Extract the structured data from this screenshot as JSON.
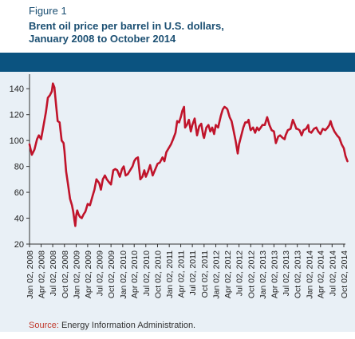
{
  "figure": {
    "label": "Figure 1",
    "title_line1": "Brent oil price per barrel in U.S. dollars,",
    "title_line2": "January 2008 to October 2014"
  },
  "source": {
    "label": "Source:",
    "text": " Energy Information Administration."
  },
  "colors": {
    "header_band": "#0b5380",
    "plot_background": "#e9f0f6",
    "line": "#c0142b",
    "title": "#1b4f72",
    "source_label": "#c0392b"
  },
  "chart_data": {
    "type": "line",
    "title": "Brent oil price per barrel in U.S. dollars, January 2008 to October 2014",
    "xlabel": "",
    "ylabel": "",
    "ylim": [
      20,
      150
    ],
    "yticks": [
      20,
      40,
      60,
      80,
      100,
      120,
      140
    ],
    "grid": false,
    "xticks": [
      {
        "date": "2008-01-02",
        "label": "Jan 02, 2008"
      },
      {
        "date": "2008-04-02",
        "label": "Apr 02, 2008"
      },
      {
        "date": "2008-07-02",
        "label": "Jul 02, 2008"
      },
      {
        "date": "2008-10-02",
        "label": "Oct 02, 2008"
      },
      {
        "date": "2009-01-02",
        "label": "Jan 02, 2009"
      },
      {
        "date": "2009-04-02",
        "label": "Apr 02, 2009"
      },
      {
        "date": "2009-07-02",
        "label": "Jul 02, 2009"
      },
      {
        "date": "2009-10-02",
        "label": "Oct 02, 2009"
      },
      {
        "date": "2010-01-02",
        "label": "Jan 02, 2010"
      },
      {
        "date": "2010-04-02",
        "label": "Apr 02, 2010"
      },
      {
        "date": "2010-07-02",
        "label": "Jul 02, 2010"
      },
      {
        "date": "2010-10-02",
        "label": "Oct 02, 2010"
      },
      {
        "date": "2011-01-02",
        "label": "Jan 02, 2011"
      },
      {
        "date": "2011-04-02",
        "label": "Apr 02, 2011"
      },
      {
        "date": "2011-07-02",
        "label": "Jul 02, 2011"
      },
      {
        "date": "2011-10-02",
        "label": "Oct 02, 2011"
      },
      {
        "date": "2012-01-02",
        "label": "Jan 02, 2012"
      },
      {
        "date": "2012-04-02",
        "label": "Apr 02, 2012"
      },
      {
        "date": "2012-07-02",
        "label": "Jul 02, 2012"
      },
      {
        "date": "2012-10-02",
        "label": "Oct 02, 2012"
      },
      {
        "date": "2013-01-02",
        "label": "Jan 02, 2013"
      },
      {
        "date": "2013-04-02",
        "label": "Apr 02, 2013"
      },
      {
        "date": "2013-07-02",
        "label": "Jul 02, 2013"
      },
      {
        "date": "2013-10-02",
        "label": "Oct 02, 2013"
      },
      {
        "date": "2014-01-02",
        "label": "Jan 02, 2014"
      },
      {
        "date": "2014-04-02",
        "label": "Apr 02, 2014"
      },
      {
        "date": "2014-07-02",
        "label": "Jul 02, 2014"
      },
      {
        "date": "2014-10-02",
        "label": "Oct 02, 2014"
      }
    ],
    "series": [
      {
        "points": [
          [
            "2008-01-02",
            97
          ],
          [
            "2008-01-20",
            89
          ],
          [
            "2008-02-10",
            93
          ],
          [
            "2008-03-01",
            101
          ],
          [
            "2008-03-15",
            104
          ],
          [
            "2008-04-02",
            101
          ],
          [
            "2008-04-20",
            111
          ],
          [
            "2008-05-10",
            122
          ],
          [
            "2008-05-25",
            133
          ],
          [
            "2008-06-10",
            135
          ],
          [
            "2008-06-25",
            138
          ],
          [
            "2008-07-03",
            144
          ],
          [
            "2008-07-15",
            141
          ],
          [
            "2008-07-28",
            128
          ],
          [
            "2008-08-10",
            115
          ],
          [
            "2008-08-25",
            114
          ],
          [
            "2008-09-10",
            100
          ],
          [
            "2008-09-25",
            98
          ],
          [
            "2008-10-02",
            92
          ],
          [
            "2008-10-15",
            76
          ],
          [
            "2008-10-30",
            66
          ],
          [
            "2008-11-15",
            55
          ],
          [
            "2008-11-30",
            50
          ],
          [
            "2008-12-10",
            45
          ],
          [
            "2008-12-20",
            38
          ],
          [
            "2008-12-26",
            34
          ],
          [
            "2009-01-02",
            42
          ],
          [
            "2009-01-10",
            46
          ],
          [
            "2009-01-20",
            43
          ],
          [
            "2009-02-01",
            41
          ],
          [
            "2009-02-15",
            40
          ],
          [
            "2009-03-01",
            43
          ],
          [
            "2009-03-15",
            45
          ],
          [
            "2009-04-02",
            51
          ],
          [
            "2009-04-20",
            50
          ],
          [
            "2009-05-10",
            57
          ],
          [
            "2009-05-25",
            62
          ],
          [
            "2009-06-10",
            70
          ],
          [
            "2009-06-25",
            68
          ],
          [
            "2009-07-02",
            67
          ],
          [
            "2009-07-15",
            62
          ],
          [
            "2009-07-30",
            70
          ],
          [
            "2009-08-15",
            73
          ],
          [
            "2009-08-30",
            70
          ],
          [
            "2009-09-15",
            68
          ],
          [
            "2009-10-02",
            66
          ],
          [
            "2009-10-20",
            77
          ],
          [
            "2009-11-05",
            78
          ],
          [
            "2009-11-20",
            77
          ],
          [
            "2009-12-10",
            72
          ],
          [
            "2009-12-28",
            78
          ],
          [
            "2010-01-10",
            80
          ],
          [
            "2010-01-25",
            73
          ],
          [
            "2010-02-10",
            74
          ],
          [
            "2010-03-01",
            77
          ],
          [
            "2010-03-20",
            80
          ],
          [
            "2010-04-02",
            84
          ],
          [
            "2010-04-15",
            86
          ],
          [
            "2010-05-01",
            87
          ],
          [
            "2010-05-20",
            70
          ],
          [
            "2010-06-05",
            72
          ],
          [
            "2010-06-20",
            77
          ],
          [
            "2010-07-02",
            72
          ],
          [
            "2010-07-20",
            76
          ],
          [
            "2010-08-05",
            81
          ],
          [
            "2010-08-25",
            73
          ],
          [
            "2010-09-15",
            78
          ],
          [
            "2010-10-02",
            82
          ],
          [
            "2010-10-20",
            83
          ],
          [
            "2010-11-10",
            87
          ],
          [
            "2010-11-25",
            84
          ],
          [
            "2010-12-10",
            91
          ],
          [
            "2010-12-28",
            94
          ],
          [
            "2011-01-15",
            97
          ],
          [
            "2011-02-01",
            101
          ],
          [
            "2011-02-20",
            106
          ],
          [
            "2011-03-05",
            115
          ],
          [
            "2011-03-20",
            114
          ],
          [
            "2011-04-02",
            118
          ],
          [
            "2011-04-15",
            123
          ],
          [
            "2011-04-28",
            126
          ],
          [
            "2011-05-06",
            110
          ],
          [
            "2011-05-20",
            112
          ],
          [
            "2011-06-05",
            116
          ],
          [
            "2011-06-20",
            107
          ],
          [
            "2011-07-02",
            112
          ],
          [
            "2011-07-20",
            117
          ],
          [
            "2011-08-08",
            104
          ],
          [
            "2011-08-25",
            111
          ],
          [
            "2011-09-10",
            113
          ],
          [
            "2011-09-25",
            104
          ],
          [
            "2011-10-02",
            102
          ],
          [
            "2011-10-20",
            110
          ],
          [
            "2011-11-05",
            112
          ],
          [
            "2011-11-20",
            107
          ],
          [
            "2011-12-05",
            110
          ],
          [
            "2011-12-20",
            105
          ],
          [
            "2012-01-02",
            112
          ],
          [
            "2012-01-20",
            110
          ],
          [
            "2012-02-10",
            119
          ],
          [
            "2012-02-25",
            124
          ],
          [
            "2012-03-10",
            126
          ],
          [
            "2012-03-25",
            125
          ],
          [
            "2012-04-02",
            124
          ],
          [
            "2012-04-20",
            118
          ],
          [
            "2012-05-05",
            115
          ],
          [
            "2012-05-20",
            108
          ],
          [
            "2012-06-05",
            100
          ],
          [
            "2012-06-22",
            90
          ],
          [
            "2012-07-02",
            97
          ],
          [
            "2012-07-20",
            104
          ],
          [
            "2012-08-05",
            110
          ],
          [
            "2012-08-20",
            114
          ],
          [
            "2012-09-05",
            114
          ],
          [
            "2012-09-15",
            116
          ],
          [
            "2012-09-28",
            109
          ],
          [
            "2012-10-02",
            108
          ],
          [
            "2012-10-20",
            110
          ],
          [
            "2012-11-05",
            106
          ],
          [
            "2012-11-20",
            110
          ],
          [
            "2012-12-05",
            108
          ],
          [
            "2012-12-20",
            110
          ],
          [
            "2013-01-02",
            112
          ],
          [
            "2013-01-20",
            112
          ],
          [
            "2013-02-08",
            118
          ],
          [
            "2013-02-25",
            112
          ],
          [
            "2013-03-15",
            108
          ],
          [
            "2013-04-02",
            107
          ],
          [
            "2013-04-17",
            98
          ],
          [
            "2013-05-05",
            103
          ],
          [
            "2013-05-20",
            104
          ],
          [
            "2013-06-10",
            102
          ],
          [
            "2013-06-25",
            101
          ],
          [
            "2013-07-02",
            104
          ],
          [
            "2013-07-20",
            108
          ],
          [
            "2013-08-10",
            109
          ],
          [
            "2013-08-28",
            116
          ],
          [
            "2013-09-10",
            113
          ],
          [
            "2013-09-25",
            109
          ],
          [
            "2013-10-02",
            109
          ],
          [
            "2013-10-20",
            108
          ],
          [
            "2013-11-05",
            104
          ],
          [
            "2013-11-20",
            108
          ],
          [
            "2013-12-10",
            109
          ],
          [
            "2013-12-27",
            112
          ],
          [
            "2014-01-02",
            107
          ],
          [
            "2014-01-20",
            106
          ],
          [
            "2014-02-10",
            109
          ],
          [
            "2014-02-28",
            110
          ],
          [
            "2014-03-15",
            107
          ],
          [
            "2014-04-02",
            105
          ],
          [
            "2014-04-20",
            109
          ],
          [
            "2014-05-10",
            108
          ],
          [
            "2014-05-28",
            110
          ],
          [
            "2014-06-10",
            112
          ],
          [
            "2014-06-20",
            115
          ],
          [
            "2014-07-02",
            111
          ],
          [
            "2014-07-20",
            107
          ],
          [
            "2014-08-10",
            104
          ],
          [
            "2014-08-28",
            102
          ],
          [
            "2014-09-15",
            97
          ],
          [
            "2014-10-02",
            94
          ],
          [
            "2014-10-15",
            88
          ],
          [
            "2014-10-30",
            84
          ]
        ]
      }
    ]
  }
}
